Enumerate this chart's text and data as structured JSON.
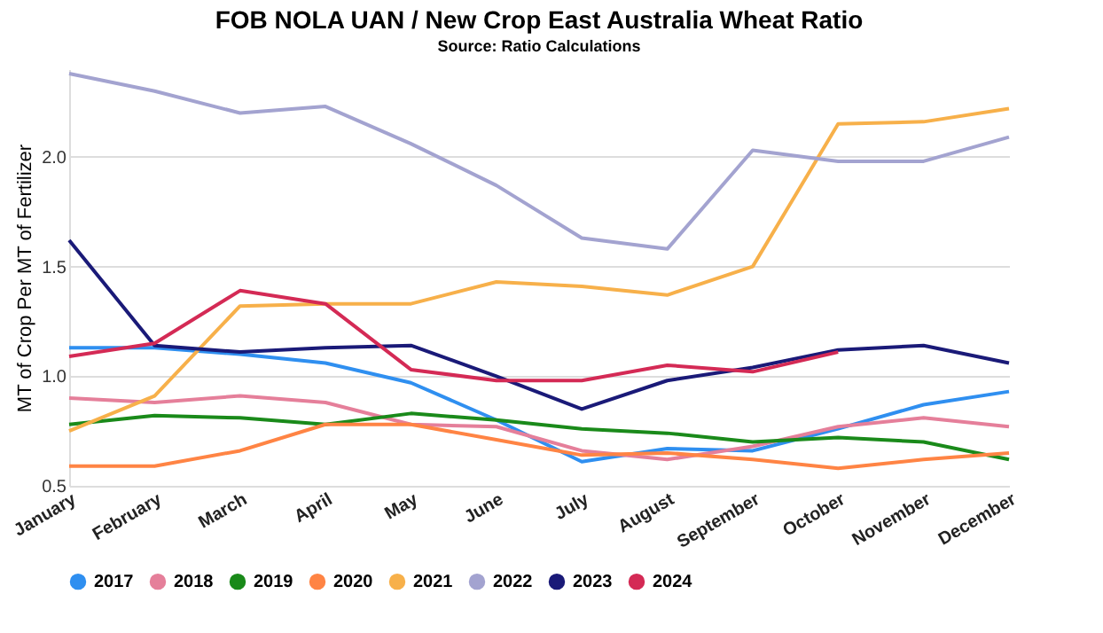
{
  "chart_data": {
    "type": "line",
    "title": "FOB NOLA UAN / New Crop East Australia Wheat Ratio",
    "subtitle": "Source: Ratio Calculations",
    "ylabel": "MT of Crop Per MT of Fertilizer",
    "categories": [
      "January",
      "February",
      "March",
      "April",
      "May",
      "June",
      "July",
      "August",
      "September",
      "October",
      "November",
      "December"
    ],
    "series": [
      {
        "name": "2017",
        "color": "#2f8ff0",
        "values": [
          1.13,
          1.13,
          1.1,
          1.06,
          0.97,
          0.8,
          0.61,
          0.67,
          0.66,
          0.76,
          0.87,
          0.93
        ]
      },
      {
        "name": "2018",
        "color": "#e57f9a",
        "values": [
          0.9,
          0.88,
          0.91,
          0.88,
          0.78,
          0.77,
          0.66,
          0.62,
          0.68,
          0.77,
          0.81,
          0.77
        ]
      },
      {
        "name": "2019",
        "color": "#1a8a1a",
        "values": [
          0.78,
          0.82,
          0.81,
          0.78,
          0.83,
          0.8,
          0.76,
          0.74,
          0.7,
          0.72,
          0.7,
          0.62
        ]
      },
      {
        "name": "2020",
        "color": "#ff8444",
        "values": [
          0.59,
          0.59,
          0.66,
          0.78,
          0.78,
          0.71,
          0.64,
          0.65,
          0.62,
          0.58,
          0.62,
          0.65
        ]
      },
      {
        "name": "2021",
        "color": "#f7b04a",
        "values": [
          0.75,
          0.91,
          1.32,
          1.33,
          1.33,
          1.43,
          1.41,
          1.37,
          1.5,
          2.15,
          2.16,
          2.22
        ]
      },
      {
        "name": "2022",
        "color": "#a3a3d0",
        "values": [
          2.38,
          2.3,
          2.2,
          2.23,
          2.06,
          1.87,
          1.63,
          1.58,
          2.03,
          1.98,
          1.98,
          2.09
        ]
      },
      {
        "name": "2023",
        "color": "#1a1a78",
        "values": [
          1.62,
          1.14,
          1.11,
          1.13,
          1.14,
          1.0,
          0.85,
          0.98,
          1.04,
          1.12,
          1.14,
          1.06
        ]
      },
      {
        "name": "2024",
        "color": "#d42a55",
        "values": [
          1.09,
          1.15,
          1.39,
          1.33,
          1.03,
          0.98,
          0.98,
          1.05,
          1.02,
          1.11,
          null,
          null
        ]
      }
    ],
    "ylim": [
      0.5,
      2.4
    ],
    "yticks": [
      {
        "value": 0.5,
        "label": "0.5"
      },
      {
        "value": 1,
        "label": "1.0"
      },
      {
        "value": 1.5,
        "label": "1.5"
      },
      {
        "value": 2,
        "label": "2.0"
      }
    ],
    "grid": "y",
    "legend": "bottom",
    "marker": "none",
    "line_style": "solid"
  }
}
